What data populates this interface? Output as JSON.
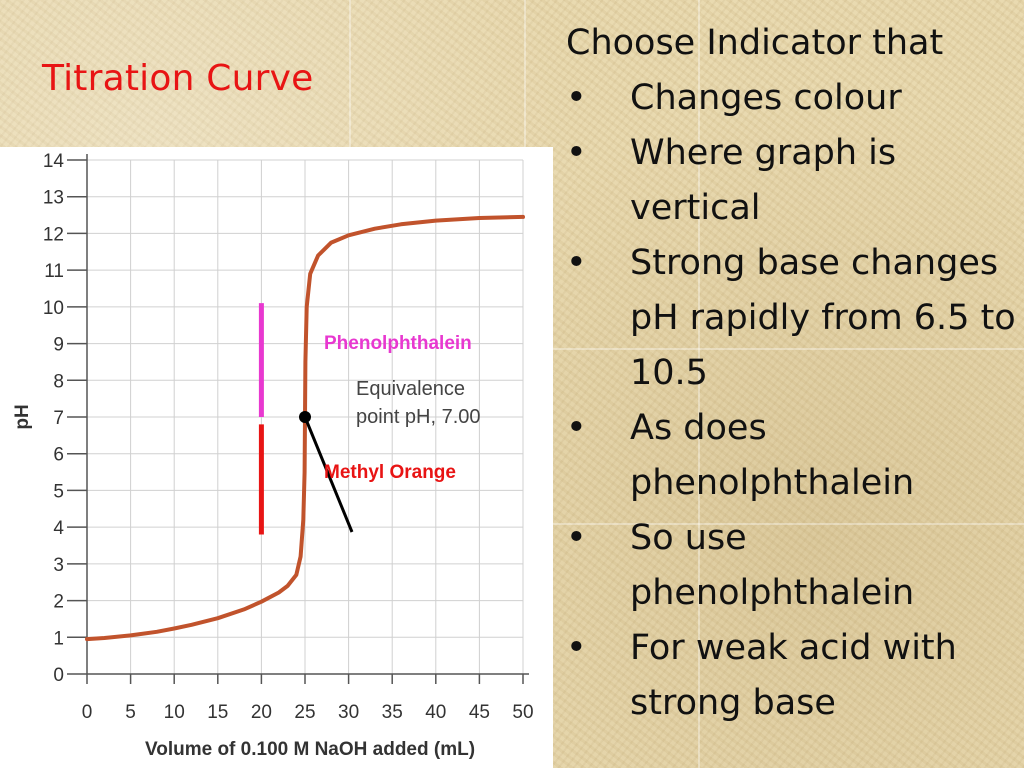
{
  "slide": {
    "title": "Titration Curve",
    "colors": {
      "title": "#e81414",
      "curve": "#c1532c",
      "phenolphthalein": "#e838d0",
      "methyl_orange": "#e81414"
    }
  },
  "bullets": {
    "heading": "Choose Indicator that",
    "bullet_glyph": "•",
    "items": [
      "Changes colour",
      "Where graph is vertical",
      "Strong base changes pH rapidly from 6.5 to 10.5",
      "As does phenolphthalein",
      "So use phenolphthalein",
      "For weak acid with strong base"
    ]
  },
  "chart_data": {
    "type": "line",
    "xlabel": "Volume of 0.100 M NaOH added (mL)",
    "ylabel": "pH",
    "xlim": [
      0,
      50
    ],
    "ylim": [
      0,
      14
    ],
    "xticks": [
      0,
      5,
      10,
      15,
      20,
      25,
      30,
      35,
      40,
      45,
      50
    ],
    "yticks": [
      0,
      1,
      2,
      3,
      4,
      5,
      6,
      7,
      8,
      9,
      10,
      11,
      12,
      13,
      14
    ],
    "grid": true,
    "series": [
      {
        "points": [
          [
            0,
            0.95
          ],
          [
            2,
            0.98
          ],
          [
            5,
            1.05
          ],
          [
            8,
            1.15
          ],
          [
            10,
            1.24
          ],
          [
            12,
            1.34
          ],
          [
            15,
            1.52
          ],
          [
            18,
            1.76
          ],
          [
            20,
            1.97
          ],
          [
            22,
            2.22
          ],
          [
            23,
            2.4
          ],
          [
            24,
            2.7
          ],
          [
            24.5,
            3.2
          ],
          [
            24.8,
            4.2
          ],
          [
            24.95,
            5.5
          ],
          [
            25,
            7.0
          ],
          [
            25.05,
            8.5
          ],
          [
            25.2,
            10.0
          ],
          [
            25.6,
            10.9
          ],
          [
            26.5,
            11.4
          ],
          [
            28,
            11.75
          ],
          [
            30,
            11.95
          ],
          [
            33,
            12.13
          ],
          [
            36,
            12.25
          ],
          [
            40,
            12.35
          ],
          [
            45,
            12.42
          ],
          [
            50,
            12.45
          ]
        ]
      }
    ],
    "equivalence_point": {
      "x": 25,
      "y": 7.0,
      "label_line1": "Equivalence",
      "label_line2": "point pH, 7.00"
    },
    "indicator_ranges": [
      {
        "name": "Phenolphthalein",
        "x": 20,
        "ph_low": 7.0,
        "ph_high": 10.1,
        "color": "#e838d0"
      },
      {
        "name": "Methyl Orange",
        "x": 20,
        "ph_low": 3.8,
        "ph_high": 6.8,
        "color": "#e81414"
      }
    ]
  }
}
